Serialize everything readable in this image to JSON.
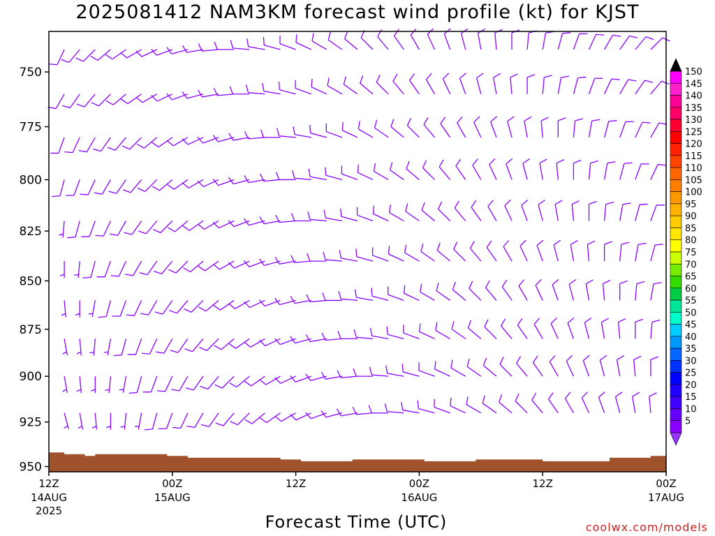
{
  "title": "2025081412 NAM3KM forecast wind profile (kt) for KJST",
  "credit": "coolwx.com/models",
  "chart_data": {
    "type": "wind_barb_profile",
    "title": "2025081412 NAM3KM forecast wind profile (kt) for KJST",
    "xlabel": "Forecast Time (UTC)",
    "ylabel": "",
    "y_axis": {
      "scale": "pressure (hPa)",
      "ticks": [
        750,
        775,
        800,
        825,
        850,
        875,
        900,
        925,
        950
      ],
      "range": [
        732,
        953
      ]
    },
    "x_axis": {
      "range_hours": [
        0,
        60
      ],
      "ticks": [
        {
          "hour": 0,
          "label": "12Z",
          "sub1": "14AUG",
          "sub2": "2025"
        },
        {
          "hour": 12,
          "label": "00Z",
          "sub1": "15AUG",
          "sub2": ""
        },
        {
          "hour": 24,
          "label": "12Z",
          "sub1": "",
          "sub2": ""
        },
        {
          "hour": 36,
          "label": "00Z",
          "sub1": "16AUG",
          "sub2": ""
        },
        {
          "hour": 48,
          "label": "12Z",
          "sub1": "",
          "sub2": ""
        },
        {
          "hour": 60,
          "label": "00Z",
          "sub1": "17AUG",
          "sub2": ""
        }
      ]
    },
    "colorbar": {
      "labels": [
        "150",
        "145",
        "140",
        "135",
        "130",
        "125",
        "120",
        "115",
        "110",
        "105",
        "100",
        "95",
        "90",
        "85",
        "80",
        "75",
        "70",
        "65",
        "60",
        "55",
        "50",
        "45",
        "40",
        "35",
        "30",
        "25",
        "20",
        "15",
        "10",
        "5"
      ],
      "colors": [
        "#ff00ff",
        "#ff22cc",
        "#ff0099",
        "#ff0066",
        "#ff0033",
        "#ff0000",
        "#ff2200",
        "#ff4400",
        "#ff6600",
        "#ff7f00",
        "#ff9900",
        "#ffb300",
        "#ffcc00",
        "#ffe600",
        "#ffff00",
        "#ccff00",
        "#77ee00",
        "#33dd00",
        "#00cc44",
        "#00e699",
        "#00ffcc",
        "#00ccff",
        "#0099ff",
        "#0066ff",
        "#0033ff",
        "#0000ff",
        "#2200ff",
        "#4400ff",
        "#6600ff",
        "#8800ff"
      ],
      "top_arrow_color": "#000000",
      "bottom_arrow_color": "#9933ff"
    },
    "barb_color_default": "#8800ff",
    "barb_color_strong": "#2200ff",
    "ground_color": "#a0522d",
    "terrain_surface_hpa": [
      [
        0,
        942
      ],
      [
        1.5,
        943
      ],
      [
        3.5,
        944
      ],
      [
        4.5,
        943
      ],
      [
        11.5,
        944
      ],
      [
        13.5,
        945
      ],
      [
        22.5,
        946
      ],
      [
        24.5,
        947
      ],
      [
        29.5,
        946
      ],
      [
        36.5,
        947
      ],
      [
        41.5,
        946
      ],
      [
        48,
        947
      ],
      [
        54.5,
        945
      ],
      [
        58.5,
        944
      ],
      [
        60,
        944
      ]
    ],
    "wind_columns": [
      {
        "hour": 1.5,
        "dir": [
          205,
          210,
          200,
          195,
          185,
          180,
          175,
          170,
          170,
          165
        ],
        "spd": [
          10,
          10,
          10,
          10,
          5,
          5,
          5,
          5,
          5,
          5
        ]
      },
      {
        "hour": 3,
        "dir": [
          220,
          215,
          205,
          200,
          195,
          185,
          180,
          175,
          175,
          170
        ],
        "spd": [
          10,
          10,
          10,
          10,
          10,
          5,
          5,
          5,
          5,
          5
        ]
      },
      {
        "hour": 4.5,
        "dir": [
          225,
          220,
          210,
          205,
          200,
          195,
          190,
          185,
          180,
          175
        ],
        "spd": [
          10,
          10,
          10,
          10,
          10,
          10,
          5,
          5,
          5,
          5
        ]
      },
      {
        "hour": 6,
        "dir": [
          230,
          225,
          215,
          210,
          205,
          200,
          195,
          190,
          185,
          180
        ],
        "spd": [
          10,
          10,
          10,
          10,
          10,
          10,
          10,
          5,
          5,
          5
        ]
      },
      {
        "hour": 7.5,
        "dir": [
          235,
          230,
          220,
          215,
          210,
          205,
          200,
          195,
          190,
          185
        ],
        "spd": [
          10,
          10,
          10,
          10,
          10,
          10,
          10,
          10,
          5,
          5
        ]
      },
      {
        "hour": 9,
        "dir": [
          240,
          235,
          225,
          220,
          215,
          210,
          205,
          200,
          195,
          190
        ],
        "spd": [
          10,
          10,
          10,
          10,
          10,
          10,
          10,
          10,
          10,
          5
        ]
      },
      {
        "hour": 10.5,
        "dir": [
          245,
          240,
          230,
          225,
          220,
          215,
          210,
          205,
          200,
          195
        ],
        "spd": [
          10,
          10,
          10,
          10,
          10,
          10,
          10,
          10,
          10,
          10
        ]
      },
      {
        "hour": 12,
        "dir": [
          250,
          245,
          235,
          230,
          225,
          220,
          215,
          210,
          205,
          200
        ],
        "spd": [
          10,
          10,
          10,
          10,
          10,
          10,
          10,
          10,
          10,
          10
        ]
      },
      {
        "hour": 13.5,
        "dir": [
          255,
          250,
          240,
          235,
          230,
          225,
          220,
          215,
          210,
          205
        ],
        "spd": [
          10,
          10,
          10,
          10,
          10,
          10,
          10,
          10,
          10,
          10
        ]
      },
      {
        "hour": 15,
        "dir": [
          260,
          255,
          245,
          240,
          235,
          230,
          225,
          220,
          215,
          210
        ],
        "spd": [
          10,
          10,
          10,
          10,
          10,
          10,
          10,
          10,
          10,
          10
        ]
      },
      {
        "hour": 16.5,
        "dir": [
          265,
          260,
          250,
          245,
          240,
          235,
          230,
          225,
          220,
          215
        ],
        "spd": [
          10,
          10,
          10,
          10,
          10,
          10,
          10,
          10,
          10,
          10
        ]
      },
      {
        "hour": 18,
        "dir": [
          270,
          265,
          255,
          250,
          245,
          240,
          235,
          230,
          225,
          220
        ],
        "spd": [
          10,
          10,
          10,
          10,
          10,
          10,
          10,
          10,
          10,
          10
        ]
      },
      {
        "hour": 19.5,
        "dir": [
          275,
          270,
          260,
          255,
          250,
          245,
          240,
          235,
          230,
          225
        ],
        "spd": [
          10,
          10,
          10,
          10,
          10,
          10,
          10,
          10,
          10,
          10
        ]
      },
      {
        "hour": 21,
        "dir": [
          280,
          275,
          265,
          260,
          255,
          250,
          245,
          240,
          235,
          230
        ],
        "spd": [
          10,
          10,
          10,
          10,
          10,
          10,
          10,
          10,
          10,
          10
        ]
      },
      {
        "hour": 22.5,
        "dir": [
          285,
          280,
          270,
          265,
          260,
          255,
          250,
          245,
          240,
          235
        ],
        "spd": [
          10,
          10,
          10,
          10,
          10,
          10,
          10,
          10,
          10,
          10
        ]
      },
      {
        "hour": 24,
        "dir": [
          290,
          285,
          275,
          270,
          265,
          260,
          255,
          250,
          245,
          240
        ],
        "spd": [
          10,
          10,
          10,
          10,
          10,
          10,
          10,
          10,
          10,
          10
        ]
      },
      {
        "hour": 25.5,
        "dir": [
          295,
          290,
          280,
          275,
          270,
          265,
          260,
          255,
          250,
          245
        ],
        "spd": [
          10,
          10,
          10,
          10,
          10,
          10,
          10,
          10,
          10,
          10
        ]
      },
      {
        "hour": 27,
        "dir": [
          300,
          295,
          285,
          280,
          275,
          270,
          265,
          260,
          255,
          250
        ],
        "spd": [
          10,
          10,
          10,
          10,
          10,
          10,
          10,
          10,
          10,
          10
        ]
      },
      {
        "hour": 28.5,
        "dir": [
          305,
          300,
          290,
          285,
          280,
          275,
          270,
          265,
          260,
          255
        ],
        "spd": [
          10,
          10,
          10,
          10,
          10,
          10,
          10,
          10,
          10,
          10
        ]
      },
      {
        "hour": 30,
        "dir": [
          310,
          305,
          295,
          290,
          285,
          280,
          275,
          270,
          265,
          260
        ],
        "spd": [
          10,
          10,
          10,
          10,
          10,
          10,
          10,
          10,
          10,
          10
        ]
      },
      {
        "hour": 31.5,
        "dir": [
          315,
          310,
          300,
          295,
          290,
          285,
          280,
          275,
          270,
          265
        ],
        "spd": [
          10,
          10,
          10,
          10,
          10,
          10,
          10,
          10,
          10,
          10
        ]
      },
      {
        "hour": 33,
        "dir": [
          320,
          315,
          305,
          300,
          295,
          290,
          285,
          280,
          275,
          270
        ],
        "spd": [
          10,
          10,
          10,
          10,
          10,
          10,
          10,
          10,
          10,
          10
        ]
      },
      {
        "hour": 34.5,
        "dir": [
          325,
          320,
          310,
          305,
          300,
          295,
          290,
          285,
          280,
          275
        ],
        "spd": [
          10,
          10,
          10,
          10,
          10,
          10,
          10,
          10,
          10,
          10
        ]
      },
      {
        "hour": 36,
        "dir": [
          330,
          325,
          315,
          310,
          305,
          300,
          295,
          290,
          285,
          280
        ],
        "spd": [
          10,
          10,
          10,
          10,
          10,
          10,
          10,
          10,
          10,
          10
        ]
      },
      {
        "hour": 37.5,
        "dir": [
          335,
          330,
          320,
          315,
          310,
          305,
          300,
          295,
          290,
          285
        ],
        "spd": [
          10,
          10,
          10,
          10,
          10,
          10,
          10,
          10,
          10,
          10
        ]
      },
      {
        "hour": 39,
        "dir": [
          340,
          335,
          325,
          320,
          315,
          310,
          305,
          300,
          295,
          290
        ],
        "spd": [
          10,
          10,
          10,
          10,
          10,
          10,
          10,
          10,
          10,
          10
        ]
      },
      {
        "hour": 40.5,
        "dir": [
          345,
          340,
          330,
          325,
          320,
          315,
          310,
          305,
          300,
          295
        ],
        "spd": [
          10,
          10,
          10,
          10,
          10,
          10,
          10,
          10,
          10,
          10
        ]
      },
      {
        "hour": 42,
        "dir": [
          350,
          345,
          335,
          330,
          325,
          320,
          315,
          310,
          305,
          300
        ],
        "spd": [
          10,
          10,
          10,
          10,
          10,
          10,
          10,
          10,
          10,
          10
        ]
      },
      {
        "hour": 43.5,
        "dir": [
          355,
          350,
          340,
          335,
          330,
          325,
          320,
          315,
          310,
          305
        ],
        "spd": [
          10,
          10,
          10,
          10,
          10,
          10,
          10,
          10,
          10,
          10
        ]
      },
      {
        "hour": 45,
        "dir": [
          0,
          355,
          345,
          340,
          335,
          330,
          325,
          320,
          315,
          310
        ],
        "spd": [
          10,
          10,
          10,
          10,
          10,
          10,
          10,
          10,
          10,
          10
        ]
      },
      {
        "hour": 46.5,
        "dir": [
          5,
          0,
          350,
          345,
          340,
          335,
          330,
          325,
          320,
          315
        ],
        "spd": [
          10,
          10,
          10,
          10,
          10,
          10,
          10,
          10,
          10,
          10
        ]
      },
      {
        "hour": 48,
        "dir": [
          10,
          5,
          355,
          350,
          345,
          340,
          335,
          330,
          325,
          320
        ],
        "spd": [
          10,
          10,
          10,
          10,
          10,
          10,
          10,
          10,
          10,
          10
        ]
      },
      {
        "hour": 49.5,
        "dir": [
          15,
          10,
          0,
          355,
          350,
          345,
          340,
          335,
          330,
          325
        ],
        "spd": [
          10,
          10,
          10,
          10,
          10,
          10,
          10,
          10,
          10,
          10
        ]
      },
      {
        "hour": 51,
        "dir": [
          20,
          15,
          5,
          0,
          355,
          350,
          345,
          340,
          335,
          330
        ],
        "spd": [
          10,
          10,
          10,
          10,
          10,
          10,
          10,
          10,
          10,
          10
        ]
      },
      {
        "hour": 52.5,
        "dir": [
          25,
          20,
          10,
          5,
          0,
          355,
          350,
          345,
          340,
          335
        ],
        "spd": [
          10,
          10,
          10,
          10,
          10,
          10,
          10,
          10,
          10,
          10
        ]
      },
      {
        "hour": 54,
        "dir": [
          30,
          25,
          15,
          10,
          5,
          0,
          355,
          350,
          345,
          340
        ],
        "spd": [
          10,
          10,
          10,
          10,
          10,
          10,
          10,
          10,
          10,
          10
        ]
      },
      {
        "hour": 55.5,
        "dir": [
          35,
          30,
          20,
          15,
          10,
          5,
          0,
          355,
          350,
          345
        ],
        "spd": [
          10,
          10,
          10,
          10,
          10,
          10,
          10,
          10,
          10,
          10
        ]
      },
      {
        "hour": 57,
        "dir": [
          40,
          35,
          25,
          20,
          15,
          10,
          5,
          0,
          355,
          350
        ],
        "spd": [
          10,
          10,
          10,
          10,
          10,
          10,
          10,
          10,
          10,
          10
        ]
      },
      {
        "hour": 58.5,
        "dir": [
          45,
          40,
          30,
          25,
          20,
          15,
          10,
          5,
          0,
          355
        ],
        "spd": [
          10,
          10,
          10,
          10,
          10,
          10,
          10,
          10,
          10,
          10
        ]
      }
    ],
    "wind_levels_hpa": [
      740,
      760,
      780,
      800,
      820,
      840,
      860,
      880,
      900,
      920
    ]
  }
}
